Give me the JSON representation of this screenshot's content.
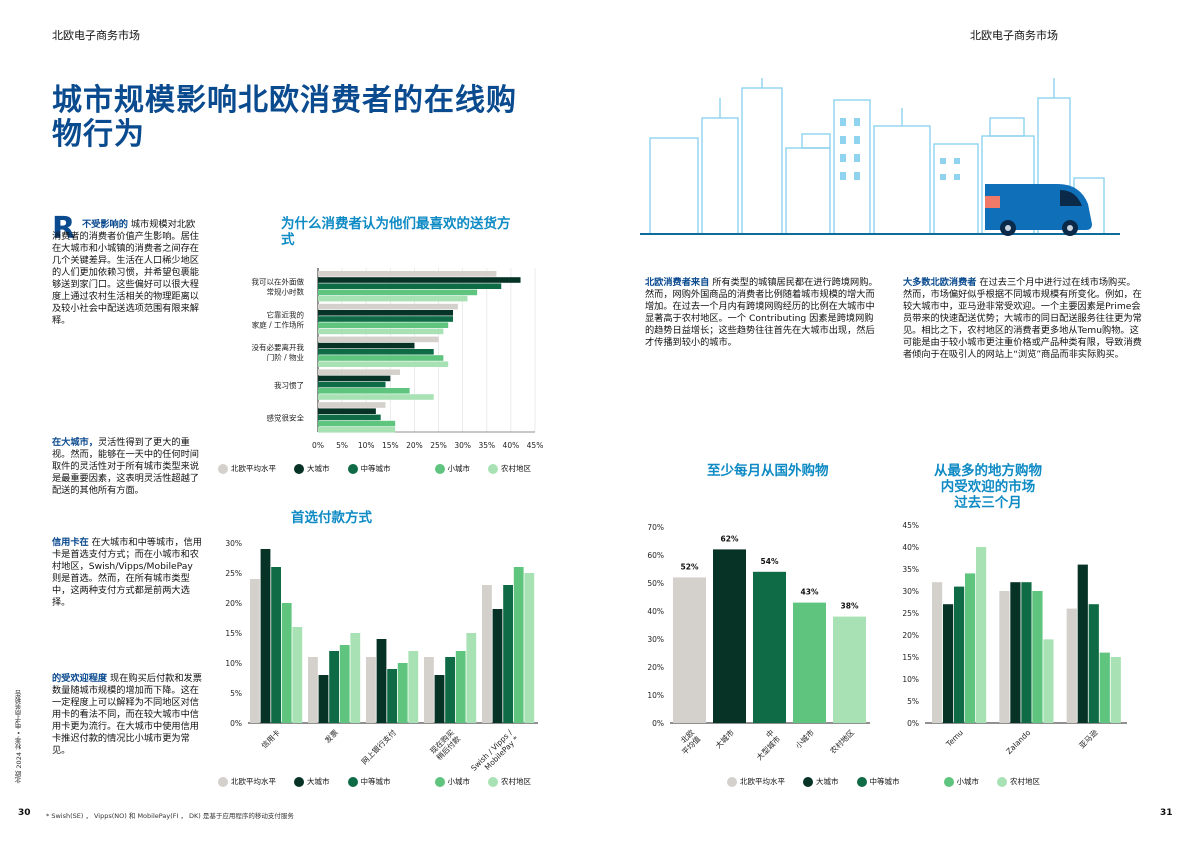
{
  "header": {
    "left": "北欧电子商务市场",
    "right": "北欧电子商务市场"
  },
  "title": "城市规模影响北欧消费者的在线购物行为",
  "colors": {
    "avg": "#d4d0cb",
    "large": "#073327",
    "mid": "#0e6b45",
    "small": "#5ec47e",
    "rural": "#a8e2b4",
    "blue": "#0a4a8f",
    "cyan": "#0e8ac4"
  },
  "left": {
    "dropcap": "R",
    "intro_bold": "不受影响的",
    "intro_text": "城市规模对北欧消费者的消费者价值产生影响。居住在大城市和小城镇的消费者之间存在几个关键差异。生活在人口稀少地区的人们更加依赖习惯，并希望包裹能够送到家门口。这些偏好可以很大程度上通过农村生活相关的物理距离以及较小社会中配送选项范围有限来解释。",
    "p2_bold": "在大城市，",
    "p2_text": "灵活性得到了更大的重视。然而，能够在一天中的任何时间取件的灵活性对于所有城市类型来说是最重要因素，这表明灵活性超越了配送的其他所有方面。",
    "p3_bold": "信用卡在",
    "p3_text": "在大城市和中等城市，信用卡是首选支付方式；而在小城市和农村地区，Swish/Vipps/MobilePay则是首选。然而，在所有城市类型中，这两种支付方式都是前两大选择。",
    "p4_bold": "的受欢迎程度",
    "p4_text": "现在购买后付款和发票数量随城市规模的增加而下降。这在一定程度上可以解释为不同地区对信用卡的看法不同，而在较大城市中信用卡更为流行。在大城市中使用信用卡推迟付款的情况比小城市更为常见。",
    "side_text": "北欧 2024 秋季 • 电子商务报告",
    "footnote": "* Swish(SE) ， Vipps(NO) 和 MobilePay(FI ， DK) 是基于应用程序的移动支付服务",
    "page": "30"
  },
  "right": {
    "p1_bold": "北欧消费者来自",
    "p1_text": "所有类型的城镇居民都在进行跨境网购。然而，网购外国商品的消费者比例随着城市规模的增大而增加。在过去一个月内有跨境网购经历的比例在大城市中显著高于农村地区。一个 Contributing 因素是跨境网购的趋势日益增长；这些趋势往往首先在大城市出现，然后才传播到较小的城市。",
    "p2_bold": "大多数北欧消费者",
    "p2_text": "在过去三个月中进行过在线市场购买。然而，市场偏好似乎根据不同城市规模有所变化。例如，在较大城市中，亚马逊非常受欢迎。一个主要因素是Prime会员带来的快速配送优势；大城市的同日配送服务往往更为常见。相比之下，农村地区的消费者更多地从Temu购物。这可能是由于较小城市更注重价格或产品种类有限，导致消费者倾向于在吸引人的网站上“浏览”商品而非实际购买。",
    "page": "31"
  },
  "legend5": [
    "北欧平均水平",
    "大城市",
    "中等城市",
    "小城市",
    "农村地区"
  ],
  "chart_data": [
    {
      "type": "bar",
      "orientation": "horizontal",
      "id": "delivery",
      "title": "为什么消费者认为他们最喜欢的送货方式",
      "categories": [
        "我可以在外面做\n常规小时数",
        "它靠近我的\n家庭 / 工作场所",
        "没有必要离开我\n门阶 / 物业",
        "我习惯了",
        "感觉很安全"
      ],
      "series": [
        {
          "name": "北欧平均水平",
          "values": [
            37,
            29,
            25,
            17,
            14
          ]
        },
        {
          "name": "大城市",
          "values": [
            42,
            28,
            20,
            15,
            12
          ]
        },
        {
          "name": "中等城市",
          "values": [
            38,
            28,
            24,
            14,
            13
          ]
        },
        {
          "name": "小城市",
          "values": [
            33,
            27,
            26,
            19,
            16
          ]
        },
        {
          "name": "农村地区",
          "values": [
            31,
            26,
            27,
            24,
            16
          ]
        }
      ],
      "xlim": [
        0,
        45
      ],
      "ticks": [
        "0%",
        "5%",
        "10%",
        "15%",
        "20%",
        "25%",
        "30%",
        "35%",
        "40%",
        "45%"
      ]
    },
    {
      "type": "bar",
      "id": "payment",
      "title": "首选付款方式",
      "categories": [
        "信用卡",
        "发票",
        "网上银行支付",
        "现在购买\n稍后付款",
        "Swish / Vipps /\nMobilePay *"
      ],
      "series": [
        {
          "name": "北欧平均水平",
          "values": [
            24,
            11,
            11,
            11,
            23
          ]
        },
        {
          "name": "大城市",
          "values": [
            29,
            8,
            14,
            8,
            19
          ]
        },
        {
          "name": "中等城市",
          "values": [
            26,
            12,
            9,
            11,
            23
          ]
        },
        {
          "name": "小城市",
          "values": [
            20,
            13,
            10,
            12,
            26
          ]
        },
        {
          "name": "农村地区",
          "values": [
            16,
            15,
            12,
            15,
            25
          ]
        }
      ],
      "ylim": [
        0,
        30
      ],
      "ticks": [
        "0%",
        "5%",
        "10%",
        "15%",
        "20%",
        "25%",
        "30%"
      ]
    },
    {
      "type": "bar",
      "id": "crossborder",
      "title": "至少每月从国外购物",
      "categories": [
        "北欧\n平均值",
        "大城市",
        "中\n大型城市",
        "小城市",
        "农村地区"
      ],
      "values": [
        52,
        62,
        54,
        43,
        38
      ],
      "labels": [
        "52%",
        "62%",
        "54%",
        "43%",
        "38%"
      ],
      "ylim": [
        0,
        70
      ],
      "ticks": [
        "0%",
        "10%",
        "20%",
        "30%",
        "40%",
        "50%",
        "60%",
        "70%"
      ]
    },
    {
      "type": "bar",
      "id": "marketplace",
      "title": "从最多的地方购物内受欢迎的市场过去三个月",
      "title_lines": [
        "从最多的地方购物",
        "内受欢迎的市场",
        "过去三个月"
      ],
      "categories": [
        "Temu",
        "Zalando",
        "亚马逊"
      ],
      "series": [
        {
          "name": "北欧平均水平",
          "values": [
            32,
            30,
            26
          ]
        },
        {
          "name": "大城市",
          "values": [
            27,
            32,
            36
          ]
        },
        {
          "name": "中等城市",
          "values": [
            31,
            32,
            27
          ]
        },
        {
          "name": "小城市",
          "values": [
            34,
            30,
            16
          ]
        },
        {
          "name": "农村地区",
          "values": [
            40,
            19,
            15
          ]
        }
      ],
      "ylim": [
        0,
        45
      ],
      "ticks": [
        "0%",
        "5%",
        "10%",
        "15%",
        "20%",
        "25%",
        "30%",
        "35%",
        "40%",
        "45%"
      ]
    }
  ]
}
